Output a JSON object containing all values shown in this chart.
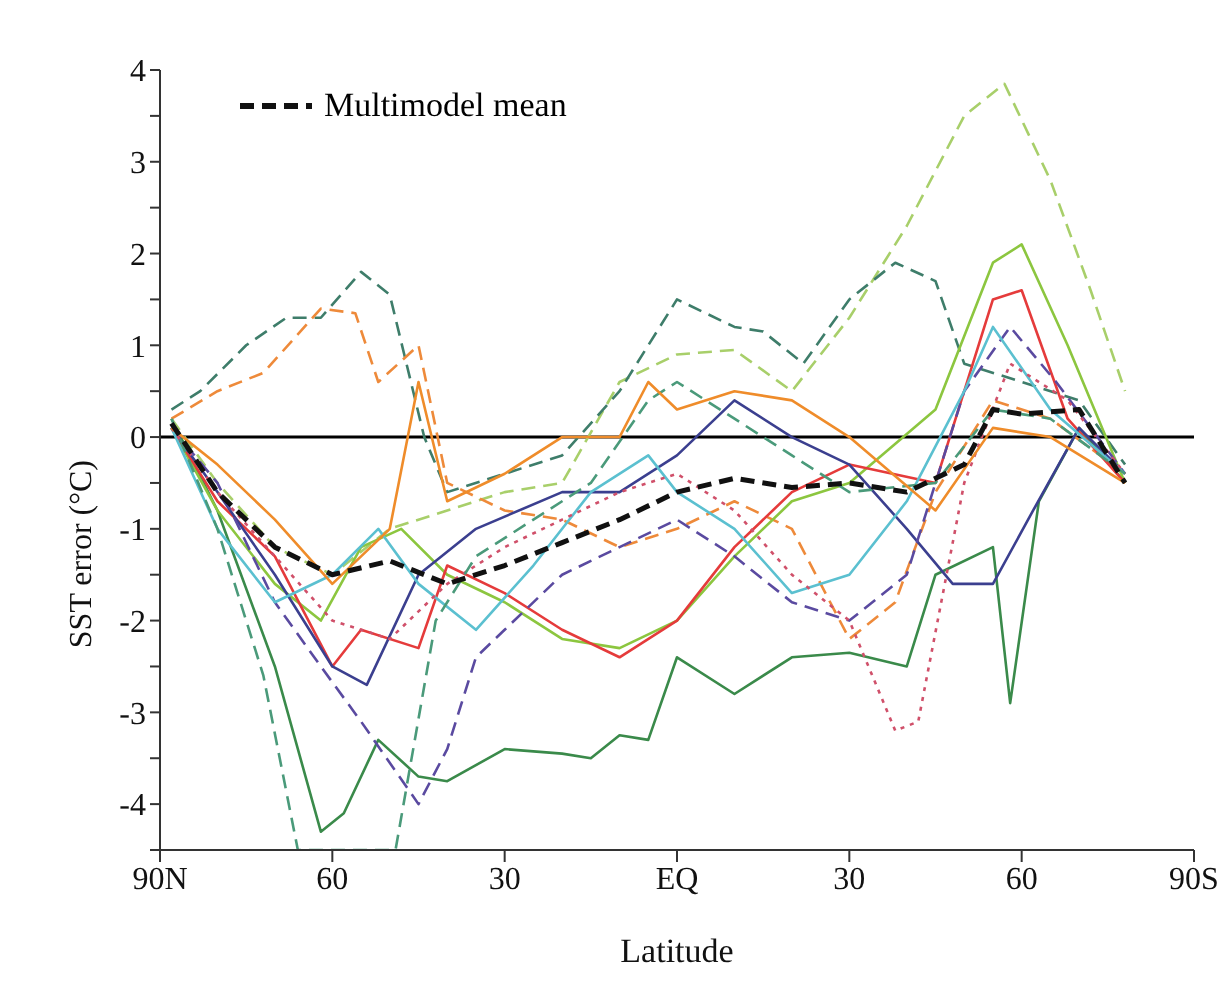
{
  "chart_data": {
    "type": "line",
    "xlabel": "Latitude",
    "ylabel": "SST error (°C)",
    "xlim": [
      90,
      -90
    ],
    "xticks": [
      {
        "value": 90,
        "label": "90N"
      },
      {
        "value": 60,
        "label": "60"
      },
      {
        "value": 30,
        "label": "30"
      },
      {
        "value": 0,
        "label": "EQ"
      },
      {
        "value": -30,
        "label": "30"
      },
      {
        "value": -60,
        "label": "60"
      },
      {
        "value": -90,
        "label": "90S"
      }
    ],
    "ylim": [
      -4.5,
      4
    ],
    "yticks": [
      {
        "value": -4.5,
        "label": null
      },
      -4,
      {
        "value": -3.5,
        "label": null
      },
      -3,
      {
        "value": -2.5,
        "label": null
      },
      -2,
      {
        "value": -1.5,
        "label": null
      },
      -1,
      {
        "value": -0.5,
        "label": null
      },
      0,
      {
        "value": 0.5,
        "label": null
      },
      1,
      {
        "value": 1.5,
        "label": null
      },
      2,
      {
        "value": 2.5,
        "label": null
      },
      3,
      {
        "value": 3.5,
        "label": null
      },
      4
    ],
    "ref_lines": [
      {
        "axis": "y",
        "value": 0,
        "color": "#000000"
      }
    ],
    "legend": "top left",
    "grid": false,
    "marker": "none",
    "series": [
      {
        "color": "#3a8a4a",
        "line_style": "solid",
        "x": [
          88,
          80,
          70,
          62,
          58,
          52,
          45,
          40,
          30,
          20,
          15,
          10,
          5,
          0,
          -10,
          -20,
          -30,
          -40,
          -45,
          -55,
          -58,
          -63,
          -70,
          -78
        ],
        "values": [
          0.2,
          -0.8,
          -2.5,
          -4.3,
          -4.1,
          -3.3,
          -3.7,
          -3.75,
          -3.4,
          -3.45,
          -3.5,
          -3.25,
          -3.3,
          -2.4,
          -2.8,
          -2.4,
          -2.35,
          -2.5,
          -1.5,
          -1.2,
          -2.9,
          -0.7,
          0.1,
          -0.5
        ]
      },
      {
        "color": "#a8cf6a",
        "line_style": "dashed",
        "x": [
          88,
          80,
          70,
          60,
          50,
          40,
          30,
          20,
          10,
          0,
          -10,
          -20,
          -30,
          -40,
          -50,
          -57,
          -65,
          -72,
          -78
        ],
        "values": [
          0.2,
          -0.5,
          -1.2,
          -1.5,
          -1.0,
          -0.8,
          -0.6,
          -0.5,
          0.6,
          0.9,
          0.95,
          0.5,
          1.3,
          2.3,
          3.5,
          3.85,
          2.8,
          1.6,
          0.5
        ]
      },
      {
        "color": "#3e7d6a",
        "line_style": "dashed",
        "x": [
          88,
          83,
          75,
          68,
          62,
          55,
          50,
          44,
          40,
          30,
          20,
          10,
          0,
          -10,
          -15,
          -22,
          -30,
          -38,
          -45,
          -50,
          -60,
          -70,
          -78
        ],
        "values": [
          0.3,
          0.5,
          1.0,
          1.3,
          1.3,
          1.8,
          1.55,
          0.0,
          -0.6,
          -0.4,
          -0.2,
          0.5,
          1.5,
          1.2,
          1.15,
          0.8,
          1.5,
          1.9,
          1.7,
          0.8,
          0.6,
          0.4,
          -0.3
        ]
      },
      {
        "color": "#ee8a3a",
        "line_style": "dashed",
        "x": [
          88,
          80,
          72,
          62,
          56,
          52,
          45,
          40,
          30,
          20,
          10,
          0,
          -10,
          -20,
          -30,
          -38,
          -45,
          -55,
          -65,
          -78
        ],
        "values": [
          0.2,
          0.5,
          0.7,
          1.4,
          1.35,
          0.6,
          1.0,
          -0.5,
          -0.8,
          -0.9,
          -1.2,
          -1.0,
          -0.7,
          -1.0,
          -2.2,
          -1.8,
          -0.6,
          0.4,
          0.2,
          -0.4
        ]
      },
      {
        "color": "#8cc63f",
        "line_style": "solid",
        "x": [
          88,
          80,
          70,
          62,
          55,
          48,
          40,
          30,
          20,
          10,
          0,
          -10,
          -20,
          -30,
          -45,
          -55,
          -60,
          -68,
          -78
        ],
        "values": [
          0.1,
          -0.8,
          -1.6,
          -2.0,
          -1.2,
          -1.0,
          -1.5,
          -1.8,
          -2.2,
          -2.3,
          -2.0,
          -1.3,
          -0.7,
          -0.5,
          0.3,
          1.9,
          2.1,
          1.0,
          -0.5
        ]
      },
      {
        "color": "#e53b3b",
        "line_style": "solid",
        "x": [
          88,
          80,
          70,
          60,
          55,
          45,
          40,
          30,
          20,
          10,
          0,
          -10,
          -20,
          -30,
          -45,
          -55,
          -60,
          -68,
          -78
        ],
        "values": [
          0.1,
          -0.7,
          -1.3,
          -2.5,
          -2.1,
          -2.3,
          -1.4,
          -1.7,
          -2.1,
          -2.4,
          -2.0,
          -1.2,
          -0.6,
          -0.3,
          -0.5,
          1.5,
          1.6,
          0.2,
          -0.5
        ]
      },
      {
        "color": "#3b3f8f",
        "line_style": "solid",
        "x": [
          88,
          80,
          70,
          60,
          54,
          45,
          35,
          20,
          10,
          0,
          -10,
          -20,
          -30,
          -40,
          -48,
          -55,
          -62,
          -70,
          -78
        ],
        "values": [
          0.1,
          -0.6,
          -1.5,
          -2.5,
          -2.7,
          -1.5,
          -1.0,
          -0.6,
          -0.6,
          -0.2,
          0.4,
          0.0,
          -0.3,
          -1.0,
          -1.6,
          -1.6,
          -0.8,
          0.1,
          -0.4
        ]
      },
      {
        "color": "#5a4aa0",
        "line_style": "dashed",
        "x": [
          88,
          80,
          70,
          62,
          55,
          45,
          40,
          35,
          30,
          20,
          10,
          0,
          -10,
          -20,
          -30,
          -40,
          -50,
          -58,
          -66,
          -78
        ],
        "values": [
          0.1,
          -0.5,
          -1.8,
          -2.5,
          -3.1,
          -4.0,
          -3.4,
          -2.4,
          -2.1,
          -1.5,
          -1.2,
          -0.9,
          -1.3,
          -1.8,
          -2.0,
          -1.5,
          0.5,
          1.2,
          0.6,
          -0.4
        ]
      },
      {
        "color": "#5bc0d0",
        "line_style": "solid",
        "x": [
          88,
          80,
          70,
          60,
          52,
          45,
          35,
          25,
          15,
          5,
          0,
          -10,
          -20,
          -30,
          -40,
          -50,
          -55,
          -65,
          -78
        ],
        "values": [
          0.1,
          -1.0,
          -1.8,
          -1.5,
          -1.0,
          -1.6,
          -2.1,
          -1.4,
          -0.6,
          -0.2,
          -0.6,
          -1.0,
          -1.7,
          -1.5,
          -0.7,
          0.5,
          1.2,
          0.3,
          -0.4
        ]
      },
      {
        "color": "#d0506a",
        "line_style": "dotted",
        "x": [
          88,
          80,
          70,
          60,
          50,
          40,
          30,
          20,
          10,
          0,
          -10,
          -20,
          -30,
          -38,
          -42,
          -50,
          -58,
          -68,
          -78
        ],
        "values": [
          0.1,
          -0.6,
          -1.3,
          -2.0,
          -2.2,
          -1.6,
          -1.2,
          -0.9,
          -0.6,
          -0.4,
          -0.8,
          -1.5,
          -2.0,
          -3.2,
          -3.1,
          -0.5,
          0.8,
          0.4,
          -0.4
        ]
      },
      {
        "color": "#4a9a7a",
        "line_style": "dashed",
        "x": [
          88,
          80,
          72,
          66,
          49,
          42,
          35,
          25,
          15,
          5,
          0,
          -10,
          -20,
          -30,
          -45,
          -55,
          -65,
          -78
        ],
        "values": [
          0.2,
          -1.0,
          -2.6,
          -4.5,
          -4.5,
          -2.0,
          -1.3,
          -0.9,
          -0.5,
          0.4,
          0.6,
          0.2,
          -0.2,
          -0.6,
          -0.5,
          0.3,
          0.2,
          -0.4
        ]
      },
      {
        "color": "#ef8c2a",
        "line_style": "solid",
        "x": [
          88,
          80,
          70,
          60,
          50,
          45,
          40,
          30,
          20,
          10,
          5,
          0,
          -10,
          -20,
          -30,
          -45,
          -55,
          -65,
          -78
        ],
        "values": [
          0.1,
          -0.3,
          -0.9,
          -1.6,
          -1.0,
          0.6,
          -0.7,
          -0.4,
          0.0,
          0.0,
          0.6,
          0.3,
          0.5,
          0.4,
          0.0,
          -0.8,
          0.1,
          0.0,
          -0.5
        ]
      },
      {
        "name": "Multimodel mean",
        "color": "#111111",
        "line_style": "dashed",
        "x": [
          88,
          80,
          70,
          60,
          50,
          40,
          30,
          20,
          10,
          0,
          -10,
          -20,
          -30,
          -40,
          -50,
          -55,
          -60,
          -70,
          -78
        ],
        "values": [
          0.15,
          -0.6,
          -1.2,
          -1.5,
          -1.35,
          -1.6,
          -1.4,
          -1.15,
          -0.9,
          -0.6,
          -0.45,
          -0.55,
          -0.5,
          -0.6,
          -0.3,
          0.3,
          0.25,
          0.3,
          -0.5
        ]
      }
    ]
  }
}
